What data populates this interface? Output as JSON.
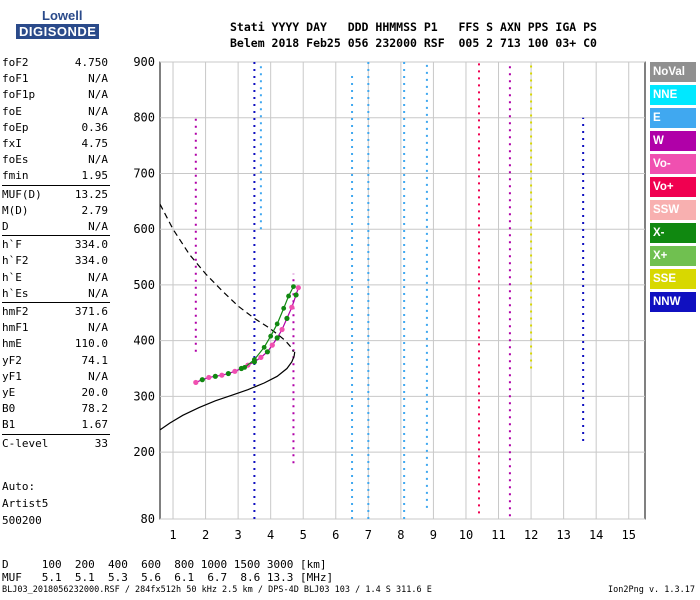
{
  "logo": {
    "line1": "Lowell",
    "line2": "DIGISONDE"
  },
  "header": {
    "row1": "Stati YYYY DAY   DDD HHMMSS P1   FFS S AXN PPS IGA PS",
    "row2": "Belem 2018 Feb25 056 232000 RSF  005 2 713 100 03+ C0"
  },
  "params": [
    {
      "name": "foF2",
      "value": "4.750"
    },
    {
      "name": "foF1",
      "value": "N/A"
    },
    {
      "name": "foF1p",
      "value": "N/A"
    },
    {
      "name": "foE",
      "value": "N/A"
    },
    {
      "name": "foEp",
      "value": "0.36"
    },
    {
      "name": "fxI",
      "value": "4.75"
    },
    {
      "name": "foEs",
      "value": "N/A"
    },
    {
      "name": "fmin",
      "value": "1.95"
    },
    {
      "name": "MUF(D)",
      "value": "13.25"
    },
    {
      "name": "M(D)",
      "value": "2.79"
    },
    {
      "name": "D",
      "value": "N/A"
    },
    {
      "name": "h`F",
      "value": "334.0"
    },
    {
      "name": "h`F2",
      "value": "334.0"
    },
    {
      "name": "h`E",
      "value": "N/A"
    },
    {
      "name": "h`Es",
      "value": "N/A"
    },
    {
      "name": "hmF2",
      "value": "371.6"
    },
    {
      "name": "hmF1",
      "value": "N/A"
    },
    {
      "name": "hmE",
      "value": "110.0"
    },
    {
      "name": "yF2",
      "value": "74.1"
    },
    {
      "name": "yF1",
      "value": "N/A"
    },
    {
      "name": "yE",
      "value": "20.0"
    },
    {
      "name": "B0",
      "value": "78.2"
    },
    {
      "name": "B1",
      "value": "1.67"
    },
    {
      "name": "C-level",
      "value": "33"
    }
  ],
  "auto": {
    "line1": "Auto:",
    "line2": "Artist5",
    "line3": "500200"
  },
  "legend": [
    {
      "label": "NoVal",
      "color": "#909090"
    },
    {
      "label": "NNE",
      "color": "#00e8ff"
    },
    {
      "label": "E",
      "color": "#40a8f0"
    },
    {
      "label": "W",
      "color": "#b000a8"
    },
    {
      "label": "Vo-",
      "color": "#f050b0"
    },
    {
      "label": "Vo+",
      "color": "#f00050"
    },
    {
      "label": "SSW",
      "color": "#f8b0b0"
    },
    {
      "label": "X-",
      "color": "#108810"
    },
    {
      "label": "X+",
      "color": "#70c050"
    },
    {
      "label": "SSE",
      "color": "#d8d800"
    },
    {
      "label": "NNW",
      "color": "#1010c0"
    }
  ],
  "distance_row": {
    "label": "D",
    "values": "100  200  400  600  800 1000 1500 3000 [km]"
  },
  "muf_row": {
    "label": "MUF",
    "values": "5.1  5.1  5.3  5.6  6.1  6.7  8.6 13.3 [MHz]"
  },
  "footer": {
    "left": "BLJ03_2018056232000.RSF / 284fx512h 50 kHz 2.5 km / DPS-4D BLJ03 103 / 1.4 S 311.6 E",
    "right": "Ion2Png v. 1.3.17"
  },
  "chart_data": {
    "type": "scatter",
    "title": "",
    "xlabel": "",
    "ylabel": "",
    "xlim": [
      0.6,
      15.5
    ],
    "ylim": [
      80,
      900
    ],
    "x_ticks": [
      1,
      2,
      3,
      4,
      5,
      6,
      7,
      8,
      9,
      10,
      11,
      12,
      13,
      14,
      15
    ],
    "y_ticks": [
      80,
      200,
      300,
      400,
      500,
      600,
      700,
      800,
      900
    ],
    "grid": true,
    "trace_main": [
      [
        1.7,
        325
      ],
      [
        1.9,
        330
      ],
      [
        2.1,
        334
      ],
      [
        2.3,
        336
      ],
      [
        2.5,
        338
      ],
      [
        2.7,
        341
      ],
      [
        2.9,
        345
      ],
      [
        3.1,
        350
      ],
      [
        3.3,
        356
      ],
      [
        3.5,
        362
      ],
      [
        3.7,
        370
      ],
      [
        3.9,
        380
      ],
      [
        4.05,
        392
      ],
      [
        4.2,
        405
      ],
      [
        4.35,
        420
      ],
      [
        4.5,
        440
      ],
      [
        4.65,
        460
      ],
      [
        4.78,
        482
      ],
      [
        4.85,
        495
      ]
    ],
    "trace_x": [
      [
        3.2,
        352
      ],
      [
        3.5,
        366
      ],
      [
        3.8,
        388
      ],
      [
        4.0,
        408
      ],
      [
        4.2,
        430
      ],
      [
        4.4,
        458
      ],
      [
        4.55,
        480
      ],
      [
        4.7,
        497
      ]
    ],
    "true_height_profile": [
      [
        0.6,
        240
      ],
      [
        0.9,
        252
      ],
      [
        1.3,
        266
      ],
      [
        1.8,
        280
      ],
      [
        2.3,
        292
      ],
      [
        2.8,
        302
      ],
      [
        3.3,
        312
      ],
      [
        3.8,
        324
      ],
      [
        4.2,
        336
      ],
      [
        4.5,
        350
      ],
      [
        4.65,
        362
      ],
      [
        4.72,
        372
      ],
      [
        4.74,
        380
      ]
    ],
    "extrapolated_profile": [
      [
        0.6,
        645
      ],
      [
        1.0,
        600
      ],
      [
        1.5,
        555
      ],
      [
        2.0,
        520
      ],
      [
        2.5,
        490
      ],
      [
        3.0,
        462
      ],
      [
        3.5,
        440
      ],
      [
        3.9,
        425
      ],
      [
        4.2,
        412
      ],
      [
        4.45,
        400
      ],
      [
        4.6,
        390
      ],
      [
        4.7,
        380
      ]
    ],
    "vertical_streaks": [
      {
        "x": 1.7,
        "y": [
          380,
          800
        ],
        "color": "#b000a8"
      },
      {
        "x": 3.5,
        "y": [
          80,
          900
        ],
        "color": "#1010c0"
      },
      {
        "x": 3.7,
        "y": [
          600,
          900
        ],
        "color": "#40a8f0"
      },
      {
        "x": 4.7,
        "y": [
          180,
          520
        ],
        "color": "#b000a8"
      },
      {
        "x": 6.5,
        "y": [
          80,
          880
        ],
        "color": "#40a8f0"
      },
      {
        "x": 7.0,
        "y": [
          80,
          900
        ],
        "color": "#40a8f0"
      },
      {
        "x": 8.1,
        "y": [
          80,
          900
        ],
        "color": "#40a8f0"
      },
      {
        "x": 8.8,
        "y": [
          100,
          900
        ],
        "color": "#40a8f0"
      },
      {
        "x": 10.4,
        "y": [
          90,
          900
        ],
        "color": "#f00050"
      },
      {
        "x": 11.35,
        "y": [
          85,
          900
        ],
        "color": "#b000a8"
      },
      {
        "x": 12.0,
        "y": [
          350,
          900
        ],
        "color": "#d8d800"
      },
      {
        "x": 13.6,
        "y": [
          220,
          800
        ],
        "color": "#1010c0"
      }
    ]
  }
}
